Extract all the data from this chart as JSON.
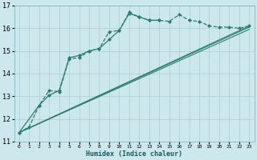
{
  "xlabel": "Humidex (Indice chaleur)",
  "bg_color": "#cde8ec",
  "line_color": "#2d7d6e",
  "grid_color": "#aacdd4",
  "xlim": [
    -0.5,
    23.5
  ],
  "ylim": [
    11,
    17
  ],
  "xticks": [
    0,
    1,
    2,
    3,
    4,
    5,
    6,
    7,
    8,
    9,
    10,
    11,
    12,
    13,
    14,
    15,
    16,
    17,
    18,
    19,
    20,
    21,
    22,
    23
  ],
  "yticks": [
    11,
    12,
    13,
    14,
    15,
    16,
    17
  ],
  "lines": [
    {
      "x": [
        0,
        1,
        2,
        3,
        4,
        5,
        6,
        7,
        8,
        9,
        10,
        11,
        12,
        13,
        14,
        15,
        16,
        17,
        18,
        19,
        20,
        21,
        22,
        23
      ],
      "y": [
        11.4,
        11.65,
        12.6,
        13.25,
        13.2,
        14.65,
        14.7,
        15.0,
        15.1,
        15.85,
        15.9,
        16.7,
        16.5,
        16.35,
        16.35,
        16.3,
        16.6,
        16.35,
        16.3,
        16.1,
        16.05,
        16.05,
        16.0,
        16.1
      ],
      "marker": "D",
      "markersize": 2.0,
      "linestyle": "--",
      "linewidth": 0.9,
      "has_marker": true
    },
    {
      "x": [
        0,
        23
      ],
      "y": [
        11.4,
        16.1
      ],
      "marker": "None",
      "markersize": 0,
      "linestyle": "-",
      "linewidth": 0.8,
      "has_marker": false
    },
    {
      "x": [
        0,
        23
      ],
      "y": [
        11.4,
        16.05
      ],
      "marker": "None",
      "markersize": 0,
      "linestyle": "-",
      "linewidth": 0.8,
      "has_marker": false
    },
    {
      "x": [
        0,
        23
      ],
      "y": [
        11.4,
        15.95
      ],
      "marker": "None",
      "markersize": 0,
      "linestyle": "-",
      "linewidth": 0.8,
      "has_marker": false
    },
    {
      "x": [
        0,
        2,
        3,
        4,
        5,
        6,
        7,
        8,
        9,
        10,
        11,
        12,
        13,
        14
      ],
      "y": [
        11.4,
        12.6,
        13.05,
        13.25,
        14.7,
        14.8,
        15.0,
        15.1,
        15.5,
        15.9,
        16.65,
        16.5,
        16.35,
        16.35
      ],
      "marker": "D",
      "markersize": 2.0,
      "linestyle": "-",
      "linewidth": 0.9,
      "has_marker": true
    }
  ]
}
